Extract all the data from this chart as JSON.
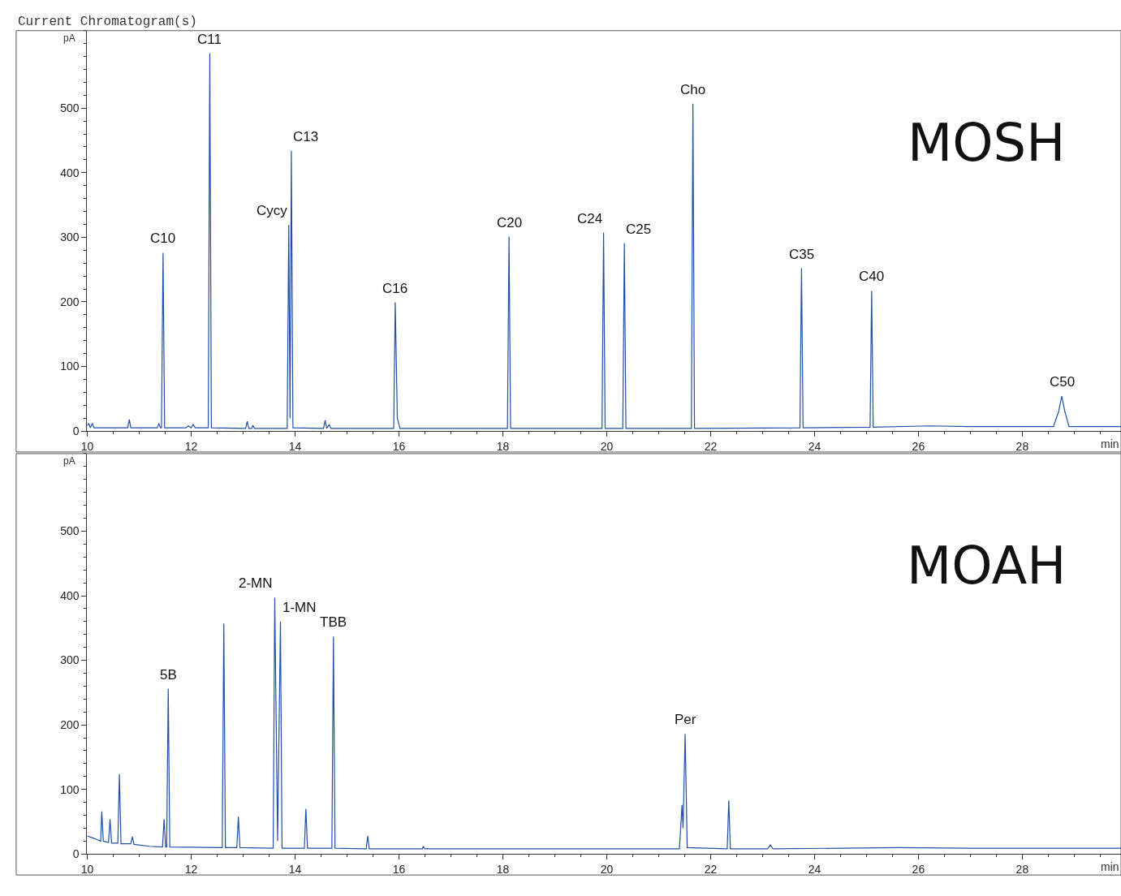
{
  "chart_data": [
    {
      "type": "line",
      "title": "Current Chromatogram(s)",
      "xlabel": "min",
      "ylabel": "pA",
      "xlim": [
        10,
        29.9
      ],
      "xticks": [
        10,
        12,
        14,
        16,
        18,
        20,
        22,
        24,
        26,
        28
      ],
      "ylim": [
        0,
        620
      ],
      "yticks": [
        0,
        100,
        200,
        300,
        400,
        500
      ],
      "grid": false,
      "marker": "none",
      "line_style": "solid",
      "series": [
        {
          "color": "#1f4fa8",
          "x": [
            10.0,
            10.03,
            10.06,
            10.1,
            10.13,
            10.4,
            10.78,
            10.81,
            10.84,
            11.35,
            11.38,
            11.41,
            11.43,
            11.46,
            11.49,
            11.9,
            11.95,
            12.0,
            12.04,
            12.08,
            12.33,
            12.36,
            12.39,
            13.05,
            13.08,
            13.11,
            13.17,
            13.19,
            13.22,
            13.85,
            13.88,
            13.905,
            13.93,
            13.96,
            14.55,
            14.58,
            14.61,
            14.66,
            14.69,
            15.9,
            15.93,
            15.97,
            16.02,
            18.09,
            18.12,
            18.15,
            19.91,
            19.94,
            19.97,
            20.31,
            20.34,
            20.37,
            21.63,
            21.66,
            21.69,
            23.72,
            23.75,
            23.78,
            25.07,
            25.1,
            25.13,
            26.2,
            27.0,
            28.6,
            28.7,
            28.76,
            28.82,
            28.9,
            29.9
          ],
          "values": [
            8,
            12,
            5,
            12,
            5,
            5,
            5,
            18,
            5,
            5,
            12,
            5,
            5,
            276,
            5,
            5,
            8,
            5,
            10,
            5,
            5,
            585,
            5,
            4,
            15,
            4,
            4,
            9,
            4,
            4,
            319,
            20,
            434,
            5,
            4,
            17,
            4,
            10,
            4,
            4,
            199,
            20,
            4,
            4,
            301,
            4,
            4,
            307,
            4,
            4,
            291,
            4,
            4,
            507,
            4,
            5,
            252,
            5,
            6,
            217,
            6,
            8,
            7,
            7,
            30,
            54,
            30,
            7,
            7
          ]
        }
      ],
      "annotations": [
        {
          "text": "C10",
          "x": 11.46,
          "y": 276
        },
        {
          "text": "C11",
          "x": 12.36,
          "y": 585
        },
        {
          "text": "Cycy",
          "x": 13.88,
          "y": 319
        },
        {
          "text": "C13",
          "x": 13.93,
          "y": 434
        },
        {
          "text": "C16",
          "x": 15.93,
          "y": 199
        },
        {
          "text": "C20",
          "x": 18.12,
          "y": 301
        },
        {
          "text": "C24",
          "x": 19.94,
          "y": 307
        },
        {
          "text": "C25",
          "x": 20.34,
          "y": 291
        },
        {
          "text": "Cho",
          "x": 21.66,
          "y": 507
        },
        {
          "text": "C35",
          "x": 23.75,
          "y": 252
        },
        {
          "text": "C40",
          "x": 25.1,
          "y": 217
        },
        {
          "text": "C50",
          "x": 28.76,
          "y": 54
        },
        "MOSH"
      ]
    },
    {
      "type": "line",
      "xlabel": "min",
      "ylabel": "pA",
      "xlim": [
        10,
        29.9
      ],
      "xticks": [
        10,
        12,
        14,
        16,
        18,
        20,
        22,
        24,
        26,
        28
      ],
      "ylim": [
        0,
        620
      ],
      "yticks": [
        0,
        100,
        200,
        300,
        400,
        500
      ],
      "grid": false,
      "marker": "none",
      "line_style": "solid",
      "series": [
        {
          "color": "#1f4fa8",
          "x": [
            10.0,
            10.1,
            10.2,
            10.26,
            10.28,
            10.31,
            10.41,
            10.44,
            10.47,
            10.59,
            10.62,
            10.65,
            10.84,
            10.87,
            10.9,
            11.2,
            11.45,
            11.48,
            11.51,
            11.53,
            11.56,
            11.59,
            12.6,
            12.63,
            12.66,
            12.88,
            12.91,
            12.94,
            13.58,
            13.61,
            13.665,
            13.72,
            13.75,
            14.18,
            14.21,
            14.24,
            14.71,
            14.74,
            14.77,
            15.37,
            15.4,
            15.43,
            16.45,
            16.47,
            16.5,
            20.0,
            21.4,
            21.45,
            21.47,
            21.51,
            21.55,
            22.32,
            22.35,
            22.38,
            23.1,
            23.15,
            23.2,
            25.6,
            27.0,
            29.9
          ],
          "values": [
            28,
            25,
            22,
            20,
            66,
            20,
            18,
            54,
            17,
            17,
            124,
            16,
            16,
            27,
            15,
            12,
            11,
            54,
            11,
            11,
            256,
            11,
            10,
            357,
            10,
            10,
            58,
            10,
            9,
            397,
            20,
            360,
            9,
            9,
            70,
            9,
            9,
            337,
            9,
            8,
            28,
            8,
            8,
            12,
            8,
            8,
            8,
            76,
            40,
            186,
            10,
            8,
            83,
            8,
            8,
            14,
            8,
            10,
            9,
            9
          ]
        }
      ],
      "annotations": [
        {
          "text": "5B",
          "x": 11.56,
          "y": 256
        },
        {
          "text": "2-MN",
          "x": 13.61,
          "y": 397
        },
        {
          "text": "1-MN",
          "x": 13.72,
          "y": 360
        },
        {
          "text": "TBB",
          "x": 14.74,
          "y": 337
        },
        {
          "text": "Per",
          "x": 21.51,
          "y": 186
        },
        "MOAH"
      ]
    }
  ]
}
